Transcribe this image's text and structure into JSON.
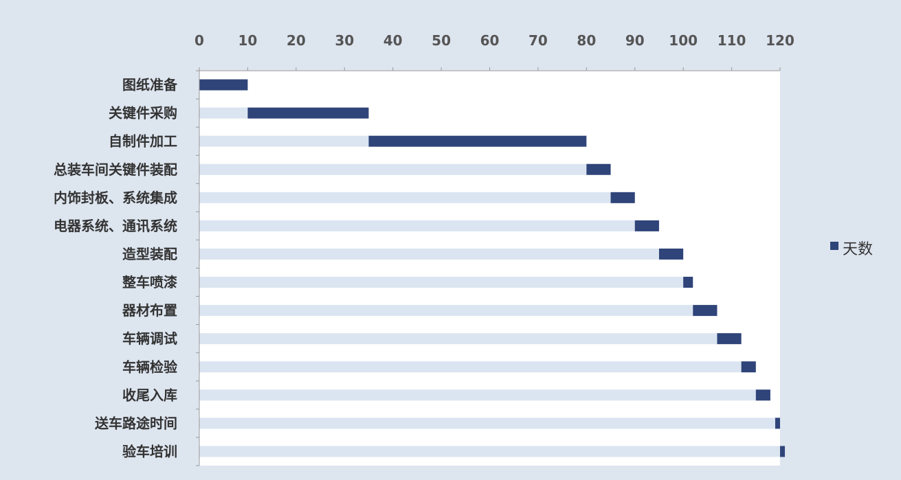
{
  "chart_data": {
    "type": "bar",
    "subtype": "stacked-horizontal-gantt",
    "title": "",
    "xlabel": "",
    "ylabel": "",
    "xlim": [
      0,
      120
    ],
    "x_ticks": [
      "0",
      "10",
      "20",
      "30",
      "40",
      "50",
      "60",
      "70",
      "80",
      "90",
      "100",
      "110",
      "120"
    ],
    "x_axis_position": "top",
    "grid": false,
    "legend": {
      "position": "right",
      "entries": [
        "天数"
      ]
    },
    "categories": [
      "图纸准备",
      "关键件采购",
      "自制件加工",
      "总装车间关键件装配",
      "内饰封板、系统集成",
      "电器系统、通讯系统",
      "造型装配",
      "整车喷漆",
      "器材布置",
      "车辆调试",
      "车辆检验",
      "收尾入库",
      "送车路途时间",
      "验车培训"
    ],
    "series": [
      {
        "role": "offset",
        "values": [
          0,
          10,
          35,
          80,
          85,
          90,
          95,
          100,
          102,
          107,
          112,
          115,
          119,
          120
        ]
      },
      {
        "name": "天数",
        "role": "duration",
        "values": [
          10,
          25,
          45,
          5,
          5,
          5,
          5,
          2,
          5,
          5,
          3,
          3,
          1,
          1
        ]
      }
    ],
    "colors": {
      "page_background": "#dde5ef",
      "plot_background": "#ffffff",
      "offset_bar": "#dbe5f1",
      "duration_bar": "#2f4479",
      "axis": "#999999",
      "text": "#333333",
      "tick_text": "#555555"
    }
  }
}
